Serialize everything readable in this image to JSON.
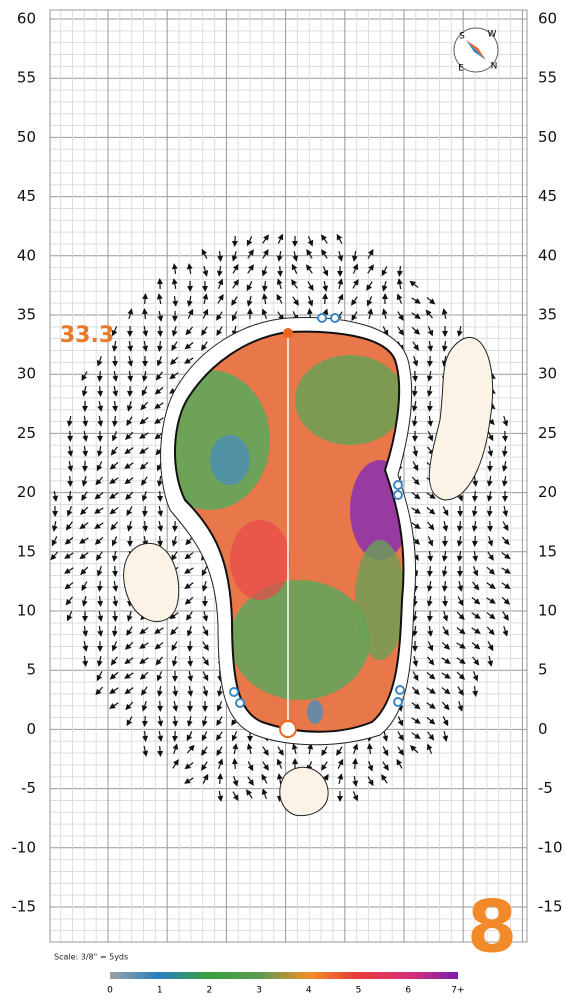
{
  "axis": {
    "left_labels": [
      60,
      55,
      50,
      45,
      40,
      35,
      30,
      25,
      20,
      15,
      10,
      5,
      0,
      -5,
      -10,
      -15
    ],
    "right_labels": [
      60,
      55,
      50,
      45,
      40,
      35,
      30,
      25,
      20,
      15,
      10,
      5,
      0,
      -5,
      -10,
      -15
    ]
  },
  "flag_marker": {
    "label": "33.3"
  },
  "hole_number": "8",
  "scale_note": "Scale: 3/8\" = 5yds",
  "compass": {
    "labels": [
      "S",
      "W",
      "N",
      "E"
    ]
  },
  "legend": {
    "labels": [
      "0",
      "1",
      "2",
      "3",
      "4",
      "5",
      "6",
      "7+"
    ]
  }
}
